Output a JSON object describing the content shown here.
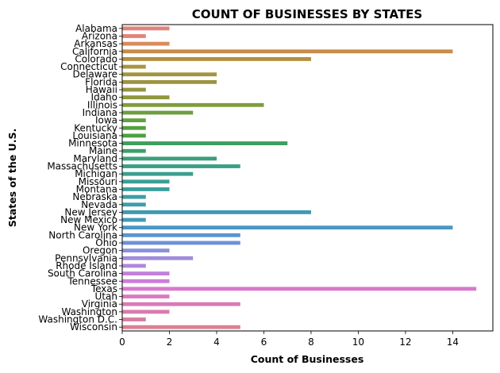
{
  "chart_data": {
    "type": "bar",
    "orientation": "horizontal",
    "title": "COUNT OF BUSINESSES BY STATES",
    "xlabel": "Count of Businesses",
    "ylabel": "States of the U.S.",
    "xlim": [
      0,
      15.7
    ],
    "xticks": [
      0,
      2,
      4,
      6,
      8,
      10,
      12,
      14
    ],
    "grid": false,
    "categories": [
      "Alabama",
      "Arizona",
      "Arkansas",
      "California",
      "Colorado",
      "Connecticut",
      "Delaware",
      "Florida",
      "Hawaii",
      "Idaho",
      "Illinois",
      "Indiana",
      "Iowa",
      "Kentucky",
      "Louisiana",
      "Minnesota",
      "Maine",
      "Maryland",
      "Massachusetts",
      "Michigan",
      "Missouri",
      "Montana",
      "Nebraska",
      "Nevada",
      "New Jersey",
      "New Mexico",
      "New York",
      "North Carolina",
      "Ohio",
      "Oregon",
      "Pennsylvania",
      "Rhode Island",
      "South Carolina",
      "Tennessee",
      "Texas",
      "Utah",
      "Virginia",
      "Washington",
      "Washington D.C.",
      "Wisconsin"
    ],
    "values": [
      2,
      1,
      2,
      14,
      8,
      1,
      4,
      4,
      1,
      2,
      6,
      3,
      1,
      1,
      1,
      7,
      1,
      4,
      5,
      3,
      2,
      2,
      1,
      1,
      8,
      1,
      14,
      5,
      5,
      2,
      3,
      1,
      2,
      2,
      15,
      2,
      5,
      2,
      1,
      5
    ],
    "colors": [
      "#e1837a",
      "#e1837a",
      "#db8a5c",
      "#c98c48",
      "#b38f3d",
      "#a99440",
      "#a29440",
      "#9d9441",
      "#95953f",
      "#8e983c",
      "#7f9d3c",
      "#6f9e41",
      "#64a03f",
      "#56a03f",
      "#4aa23f",
      "#3d9e5e",
      "#3ba06b",
      "#3aa07a",
      "#3aa085",
      "#3ba08e",
      "#3c9e96",
      "#3b9e9d",
      "#3c9ea4",
      "#3d9da9",
      "#3f9ab2",
      "#4299ba",
      "#4a97c4",
      "#5b95d3",
      "#6c91da",
      "#8a90dc",
      "#a18cdc",
      "#b086dd",
      "#c180dc",
      "#cf7cd8",
      "#d978cd",
      "#dc78c2",
      "#db79b6",
      "#da7bab",
      "#d97c9f",
      "#dd7f92"
    ]
  }
}
